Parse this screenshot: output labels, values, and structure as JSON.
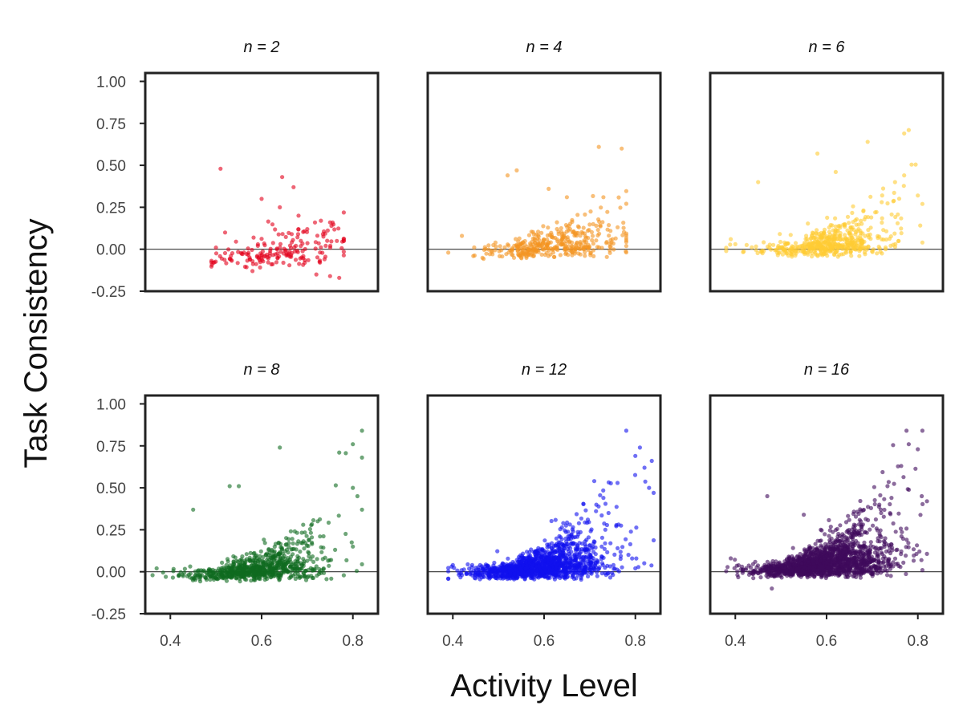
{
  "chart_data": {
    "type": "scatter",
    "layout": "2x3 small multiples",
    "xlabel": "Activity Level",
    "ylabel": "Task Consistency",
    "xlim": [
      0.345,
      0.855
    ],
    "ylim": [
      -0.25,
      1.05
    ],
    "xticks": [
      "0.4",
      "0.6",
      "0.8"
    ],
    "yticks": [
      "1.00",
      "0.75",
      "0.50",
      "0.25",
      "0.00",
      "-0.25"
    ],
    "ytick_values": [
      1.0,
      0.75,
      0.5,
      0.25,
      0.0,
      -0.25
    ],
    "xtick_values": [
      0.4,
      0.6,
      0.8
    ],
    "reference_line_y": 0.0,
    "grid": false,
    "shared_axes": true,
    "panels": [
      {
        "title": "n = 2",
        "color": "#e3001b",
        "x_range": [
          0.49,
          0.78
        ],
        "x_mode": 0.64,
        "y_base": -0.06,
        "y_spread": 0.06,
        "y_slope": 0.2,
        "y_max": 0.48,
        "n_points": 180,
        "points": [
          [
            0.51,
            0.48
          ],
          [
            0.645,
            0.43
          ],
          [
            0.67,
            0.37
          ],
          [
            0.6,
            0.3
          ],
          [
            0.64,
            0.25
          ],
          [
            0.75,
            0.16
          ],
          [
            0.73,
            0.17
          ],
          [
            0.7,
            0.12
          ],
          [
            0.52,
            0.1
          ],
          [
            0.68,
            0.09
          ],
          [
            0.5,
            0.01
          ],
          [
            0.75,
            -0.16
          ],
          [
            0.77,
            -0.17
          ],
          [
            0.72,
            -0.15
          ],
          [
            0.58,
            -0.13
          ]
        ]
      },
      {
        "title": "n = 4",
        "color": "#f39422",
        "x_range": [
          0.38,
          0.78
        ],
        "x_mode": 0.62,
        "y_base": 0.0,
        "y_spread": 0.05,
        "y_slope": 0.4,
        "y_max": 0.6,
        "n_points": 380,
        "points": [
          [
            0.72,
            0.61
          ],
          [
            0.77,
            0.6
          ],
          [
            0.54,
            0.47
          ],
          [
            0.52,
            0.44
          ],
          [
            0.61,
            0.36
          ],
          [
            0.73,
            0.31
          ],
          [
            0.65,
            0.31
          ],
          [
            0.42,
            0.08
          ],
          [
            0.39,
            -0.02
          ],
          [
            0.75,
            0.06
          ]
        ]
      },
      {
        "title": "n = 6",
        "color": "#ffcc33",
        "x_range": [
          0.38,
          0.82
        ],
        "x_mode": 0.61,
        "y_base": 0.01,
        "y_spread": 0.05,
        "y_slope": 0.6,
        "y_max": 0.71,
        "n_points": 520,
        "points": [
          [
            0.78,
            0.71
          ],
          [
            0.77,
            0.69
          ],
          [
            0.69,
            0.64
          ],
          [
            0.58,
            0.57
          ],
          [
            0.62,
            0.46
          ],
          [
            0.77,
            0.44
          ],
          [
            0.75,
            0.4
          ],
          [
            0.45,
            0.4
          ],
          [
            0.8,
            0.32
          ],
          [
            0.81,
            0.27
          ],
          [
            0.39,
            0.06
          ],
          [
            0.4,
            0.03
          ],
          [
            0.81,
            0.04
          ]
        ]
      },
      {
        "title": "n = 8",
        "color": "#0f6b20",
        "x_range": [
          0.36,
          0.82
        ],
        "x_mode": 0.6,
        "y_base": 0.0,
        "y_spread": 0.05,
        "y_slope": 0.7,
        "y_max": 0.84,
        "n_points": 780,
        "points": [
          [
            0.82,
            0.84
          ],
          [
            0.8,
            0.76
          ],
          [
            0.82,
            0.68
          ],
          [
            0.64,
            0.74
          ],
          [
            0.77,
            0.71
          ],
          [
            0.55,
            0.51
          ],
          [
            0.53,
            0.51
          ],
          [
            0.81,
            0.45
          ],
          [
            0.8,
            0.5
          ],
          [
            0.45,
            0.37
          ],
          [
            0.37,
            0.02
          ],
          [
            0.39,
            -0.03
          ],
          [
            0.82,
            0.37
          ],
          [
            0.8,
            0.15
          ]
        ]
      },
      {
        "title": "n = 12",
        "color": "#1010ee",
        "x_range": [
          0.39,
          0.84
        ],
        "x_mode": 0.6,
        "y_base": 0.01,
        "y_spread": 0.05,
        "y_slope": 0.9,
        "y_max": 0.84,
        "n_points": 1400,
        "points": [
          [
            0.78,
            0.84
          ],
          [
            0.81,
            0.74
          ],
          [
            0.8,
            0.69
          ],
          [
            0.82,
            0.62
          ],
          [
            0.84,
            0.47
          ],
          [
            0.83,
            0.5
          ],
          [
            0.71,
            0.54
          ],
          [
            0.73,
            0.44
          ],
          [
            0.8,
            0.02
          ],
          [
            0.4,
            0.04
          ],
          [
            0.42,
            -0.02
          ]
        ]
      },
      {
        "title": "n = 16",
        "color": "#3f0a5c",
        "x_range": [
          0.38,
          0.82
        ],
        "x_mode": 0.6,
        "y_base": 0.02,
        "y_spread": 0.06,
        "y_slope": 1.0,
        "y_max": 0.84,
        "n_points": 1700,
        "points": [
          [
            0.81,
            0.84
          ],
          [
            0.78,
            0.76
          ],
          [
            0.8,
            0.73
          ],
          [
            0.82,
            0.42
          ],
          [
            0.81,
            0.01
          ],
          [
            0.39,
            0.08
          ],
          [
            0.48,
            -0.1
          ],
          [
            0.47,
            0.45
          ],
          [
            0.55,
            0.34
          ]
        ]
      }
    ]
  }
}
